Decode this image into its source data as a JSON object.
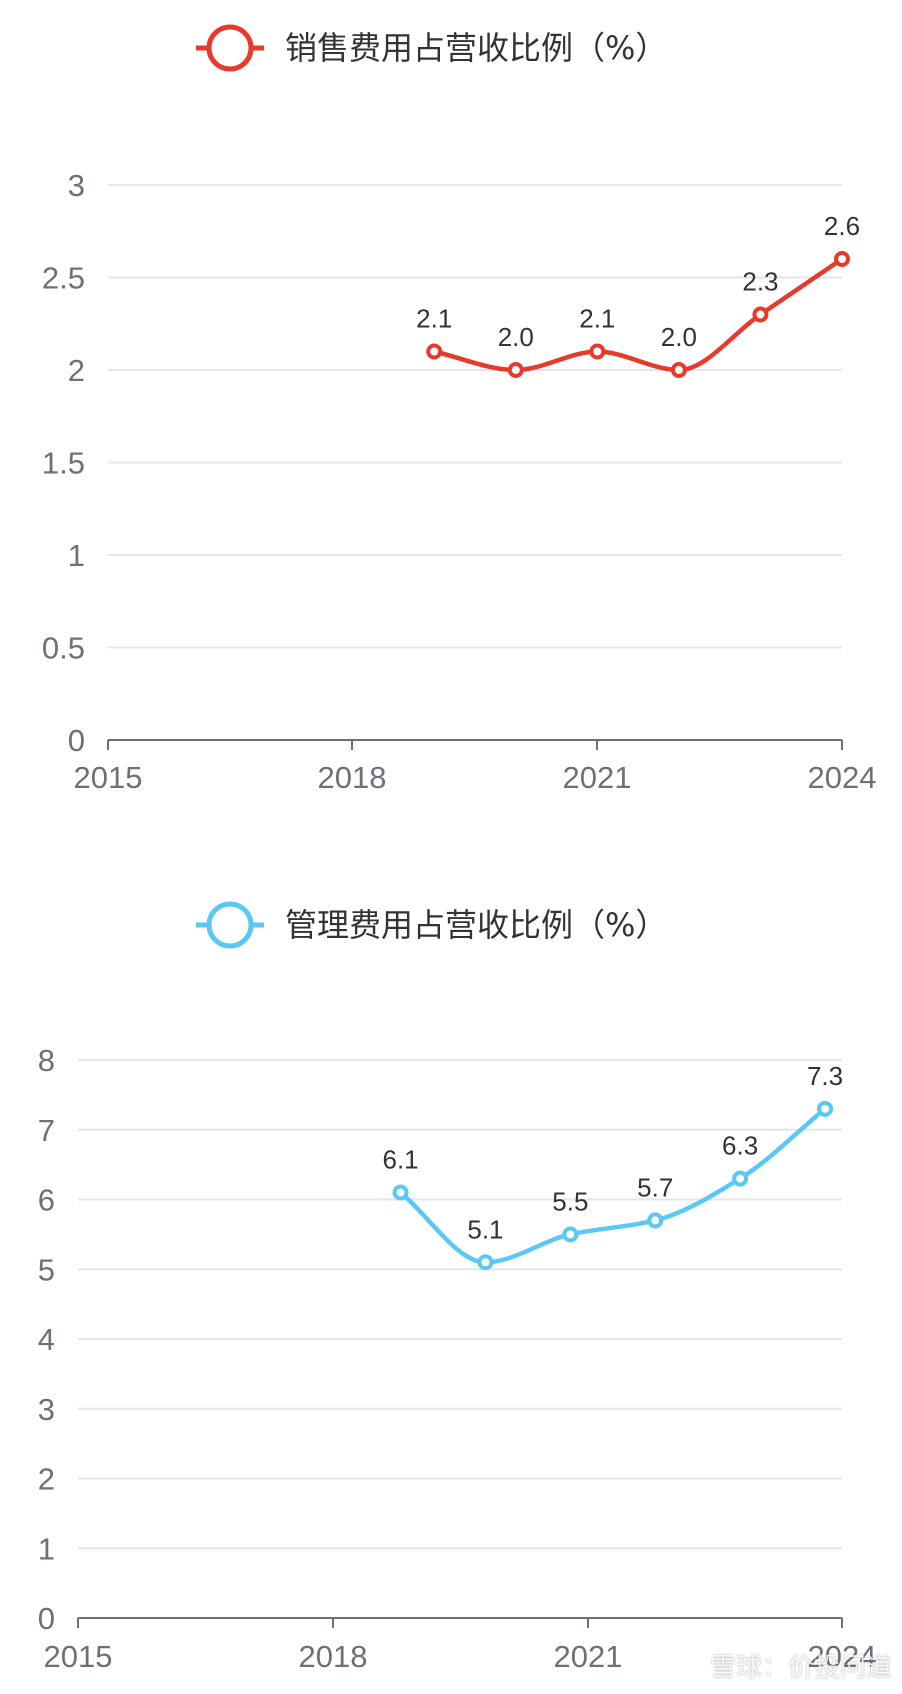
{
  "chart_data": [
    {
      "type": "line",
      "legend": "销售费用占营收比例（%）",
      "color": "#e8392d",
      "x_ticks": [
        "2015",
        "2018",
        "2021",
        "2024"
      ],
      "y_ticks": [
        "0",
        "0.5",
        "1",
        "1.5",
        "2",
        "2.5",
        "3"
      ],
      "ylim": [
        0,
        3
      ],
      "xlim": [
        2015,
        2024
      ],
      "grid": true,
      "legend_position": "top-center",
      "series": [
        {
          "x": [
            2019,
            2020,
            2021,
            2022,
            2023,
            2024
          ],
          "values": [
            2.1,
            2.0,
            2.1,
            2.0,
            2.3,
            2.6
          ],
          "labels": [
            "2.1",
            "2.0",
            "2.1",
            "2.0",
            "2.3",
            "2.6"
          ]
        }
      ]
    },
    {
      "type": "line",
      "legend": "管理费用占营收比例（%）",
      "color": "#5ac8f5",
      "x_ticks": [
        "2015",
        "2018",
        "2021",
        "2024"
      ],
      "y_ticks": [
        "0",
        "1",
        "2",
        "3",
        "4",
        "5",
        "6",
        "7",
        "8"
      ],
      "ylim": [
        0,
        8
      ],
      "xlim": [
        2015,
        2024
      ],
      "grid": true,
      "legend_position": "top-center",
      "series": [
        {
          "x": [
            2018.8,
            2019.8,
            2020.8,
            2021.8,
            2022.8,
            2023.8
          ],
          "values": [
            6.1,
            5.1,
            5.5,
            5.7,
            6.3,
            7.3
          ],
          "labels": [
            "6.1",
            "5.1",
            "5.5",
            "5.7",
            "6.3",
            "7.3"
          ]
        }
      ]
    }
  ],
  "watermark": "雪球：价投问道"
}
